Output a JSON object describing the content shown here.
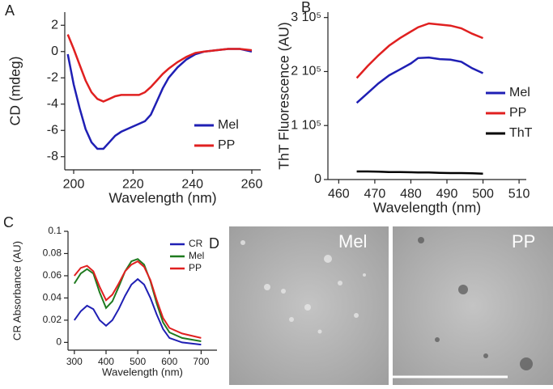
{
  "panel_labels": [
    "A",
    "B",
    "C",
    "D"
  ],
  "micrographs": {
    "labels": [
      "Mel",
      "PP"
    ]
  },
  "chart_data": [
    {
      "type": "line",
      "xlabel": "Wavelength (nm)",
      "ylabel": "CD (mdeg)",
      "x": [
        198,
        200,
        202,
        204,
        206,
        208,
        210,
        212,
        214,
        216,
        218,
        220,
        222,
        224,
        226,
        228,
        230,
        232,
        235,
        238,
        241,
        244,
        248,
        252,
        256,
        260
      ],
      "series": [
        {
          "name": "Mel",
          "color": "#1f1fb4",
          "values": [
            -0.2,
            -2.5,
            -4.3,
            -5.9,
            -6.9,
            -7.4,
            -7.4,
            -6.9,
            -6.4,
            -6.1,
            -5.9,
            -5.7,
            -5.5,
            -5.3,
            -4.8,
            -3.8,
            -2.8,
            -2.0,
            -1.2,
            -0.6,
            -0.2,
            0.0,
            0.1,
            0.2,
            0.2,
            0.0
          ]
        },
        {
          "name": "PP",
          "color": "#e02020",
          "values": [
            1.3,
            0.2,
            -1.0,
            -2.2,
            -3.1,
            -3.6,
            -3.8,
            -3.6,
            -3.4,
            -3.3,
            -3.3,
            -3.3,
            -3.3,
            -3.1,
            -2.7,
            -2.2,
            -1.7,
            -1.3,
            -0.8,
            -0.4,
            -0.1,
            0.0,
            0.1,
            0.2,
            0.2,
            0.1
          ]
        }
      ],
      "xlim": [
        197,
        263
      ],
      "xticks": [
        200,
        220,
        240,
        260
      ],
      "ylim": [
        -9,
        3
      ],
      "yticks": [
        2,
        0,
        -2,
        -4,
        -6,
        -8
      ]
    },
    {
      "type": "line",
      "xlabel": "Wavelength (nm)",
      "ylabel": "ThT Fluorescence (AU)",
      "x": [
        465,
        468,
        471,
        474,
        477,
        480,
        482,
        485,
        488,
        491,
        494,
        497,
        500
      ],
      "series": [
        {
          "name": "Mel",
          "color": "#1f1fb4",
          "values": [
            142000,
            160000,
            178000,
            193000,
            204000,
            215000,
            225000,
            226000,
            223000,
            222000,
            218000,
            206000,
            197000
          ]
        },
        {
          "name": "PP",
          "color": "#e02020",
          "values": [
            188000,
            210000,
            230000,
            248000,
            262000,
            274000,
            282000,
            289000,
            287000,
            285000,
            280000,
            270000,
            262000
          ]
        },
        {
          "name": "ThT",
          "color": "#000000",
          "values": [
            15000,
            15000,
            14500,
            14000,
            14000,
            13500,
            13000,
            13000,
            12500,
            12000,
            12000,
            11500,
            11000
          ]
        }
      ],
      "xlim": [
        457,
        512
      ],
      "xticks": [
        460,
        470,
        480,
        490,
        500,
        510
      ],
      "ylim": [
        0,
        310000
      ],
      "yticks": [
        0,
        {
          "value": 100000,
          "label": "1 10⁵"
        },
        {
          "value": 200000,
          "label": "2 10⁵"
        },
        {
          "value": 300000,
          "label": "3 10⁵"
        }
      ]
    },
    {
      "type": "line",
      "xlabel": "Wavelength (nm)",
      "ylabel": "CR Absorbance (AU)",
      "x": [
        300,
        320,
        340,
        360,
        380,
        400,
        420,
        440,
        460,
        480,
        500,
        520,
        540,
        560,
        580,
        600,
        640,
        700
      ],
      "series": [
        {
          "name": "CR",
          "color": "#1f1fb4",
          "values": [
            0.02,
            0.028,
            0.033,
            0.03,
            0.02,
            0.015,
            0.02,
            0.03,
            0.042,
            0.052,
            0.057,
            0.052,
            0.04,
            0.025,
            0.012,
            0.004,
            0.0,
            -0.002
          ]
        },
        {
          "name": "Mel",
          "color": "#1f7a1f",
          "values": [
            0.053,
            0.062,
            0.066,
            0.062,
            0.045,
            0.031,
            0.037,
            0.05,
            0.064,
            0.073,
            0.075,
            0.07,
            0.055,
            0.035,
            0.018,
            0.009,
            0.004,
            0.001
          ]
        },
        {
          "name": "PP",
          "color": "#e02020",
          "values": [
            0.06,
            0.067,
            0.069,
            0.064,
            0.05,
            0.038,
            0.043,
            0.053,
            0.064,
            0.07,
            0.073,
            0.068,
            0.056,
            0.038,
            0.022,
            0.013,
            0.008,
            0.004
          ]
        }
      ],
      "xlim": [
        280,
        750
      ],
      "xticks": [
        300,
        400,
        500,
        600,
        700
      ],
      "ylim": [
        -0.007,
        0.1
      ],
      "yticks": [
        0,
        0.02,
        0.04,
        0.06,
        0.08,
        0.1
      ]
    }
  ]
}
